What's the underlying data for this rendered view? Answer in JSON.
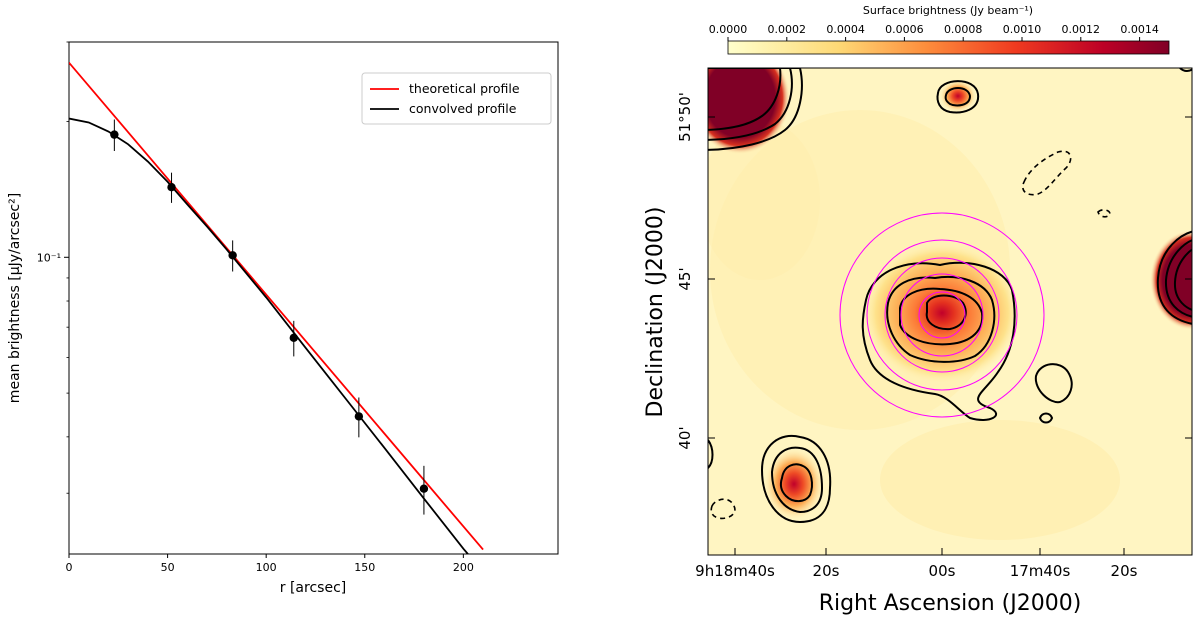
{
  "chart_data": [
    {
      "type": "line",
      "xlabel": "r [arcsec]",
      "ylabel": "mean brightness [μJy/arcsec²]",
      "xlim": [
        0,
        248
      ],
      "ylim": [
        0.022,
        0.3
      ],
      "yscale": "log",
      "x_ticks": [
        0,
        50,
        100,
        150,
        200
      ],
      "y_ticks": [
        {
          "value": 0.1,
          "label": "10⁻¹"
        }
      ],
      "legend_position": "top-right",
      "series": [
        {
          "name": "theoretical profile",
          "color": "#ff0000",
          "x": [
            0,
            210
          ],
          "y": [
            0.27,
            0.0225
          ]
        },
        {
          "name": "convolved profile",
          "color": "#000000",
          "x": [
            0,
            10,
            20,
            30,
            40,
            50,
            60,
            70,
            80,
            100,
            120,
            140,
            160,
            180,
            200,
            214
          ],
          "y": [
            0.203,
            0.199,
            0.19,
            0.178,
            0.163,
            0.147,
            0.131,
            0.117,
            0.104,
            0.0815,
            0.063,
            0.0488,
            0.0378,
            0.0292,
            0.0226,
            0.0192
          ]
        }
      ],
      "points": {
        "x": [
          23,
          52,
          83,
          114,
          147,
          180
        ],
        "y": [
          0.187,
          0.143,
          0.101,
          0.0663,
          0.0444,
          0.0307
        ],
        "yerr": [
          0.015,
          0.011,
          0.008,
          0.006,
          0.0045,
          0.0038
        ]
      }
    },
    {
      "type": "heatmap",
      "xlabel": "Right Ascension (J2000)",
      "ylabel": "Declination (J2000)",
      "x_ticks": [
        "9h18m40s",
        "20s",
        "00s",
        "17m40s",
        "20s"
      ],
      "y_ticks": [
        "51°50'",
        "45'",
        "40'"
      ],
      "colorbar": {
        "label": "Surface brightness (Jy beam⁻¹)",
        "ticks": [
          "0.0000",
          "0.0002",
          "0.0004",
          "0.0006",
          "0.0008",
          "0.0010",
          "0.0012",
          "0.0014"
        ],
        "range": [
          0,
          0.0015
        ]
      },
      "annotation": "magenta concentric circles centred on the central source",
      "colors": {
        "circles": "#ff00ff",
        "contours": "#000000"
      }
    }
  ]
}
